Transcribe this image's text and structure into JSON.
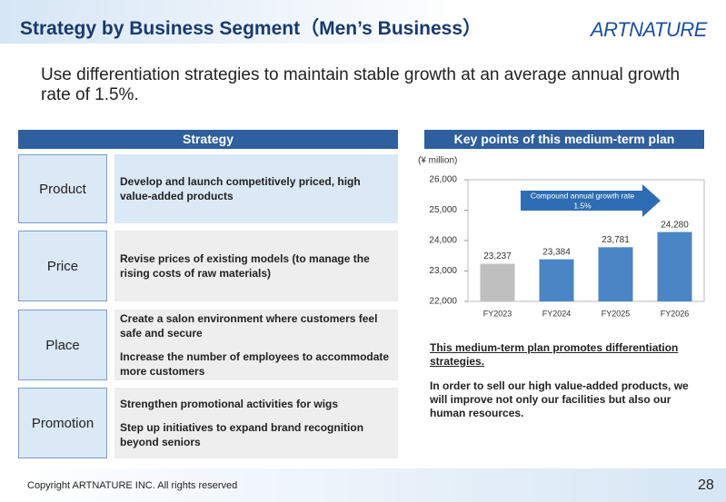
{
  "header": {
    "title": "Strategy by Business Segment（Men’s Business）",
    "logo": "ARTNATURE"
  },
  "lead": "Use differentiation strategies to maintain stable growth at an average annual growth rate of 1.5%.",
  "strategy": {
    "heading": "Strategy",
    "rows": [
      {
        "label": "Product",
        "items": [
          "Develop and launch competitively priced, high value-added products"
        ]
      },
      {
        "label": "Price",
        "items": [
          "Revise prices of existing models (to manage the rising costs of raw materials)"
        ]
      },
      {
        "label": "Place",
        "items": [
          "Create a salon environment where customers feel safe and secure",
          "Increase the number of employees to accommodate more customers"
        ]
      },
      {
        "label": "Promotion",
        "items": [
          "Strengthen promotional activities for wigs",
          "Step up initiatives to expand brand recognition beyond seniors"
        ]
      }
    ]
  },
  "key_points": {
    "heading": "Key points of this medium-term plan",
    "note": "This medium-term plan promotes differentiation strategies.",
    "body": "In order to sell our high value-added products, we will improve not only our facilities but also our human resources."
  },
  "chart_data": {
    "type": "bar",
    "unit_label": "(¥ million)",
    "annotation": [
      "Compound annual growth rate",
      "1.5%"
    ],
    "categories": [
      "FY2023",
      "FY2024",
      "FY2025",
      "FY2026"
    ],
    "values": [
      23237,
      23384,
      23781,
      24280
    ],
    "value_labels": [
      "23,237",
      "23,384",
      "23,781",
      "24,280"
    ],
    "colors": [
      "#bfbfbf",
      "#4a86c5",
      "#4a86c5",
      "#4a86c5"
    ],
    "ylim": [
      22000,
      26000
    ],
    "yticks": [
      {
        "value": 22000,
        "label": "22,000"
      },
      {
        "value": 23000,
        "label": "23,000"
      },
      {
        "value": 24000,
        "label": "24,000"
      },
      {
        "value": 25000,
        "label": "25,000"
      },
      {
        "value": 26000,
        "label": "26,000"
      }
    ],
    "grid": false
  },
  "footer": {
    "copyright": "Copyright ARTNATURE INC. All rights reserved",
    "page": 28
  }
}
